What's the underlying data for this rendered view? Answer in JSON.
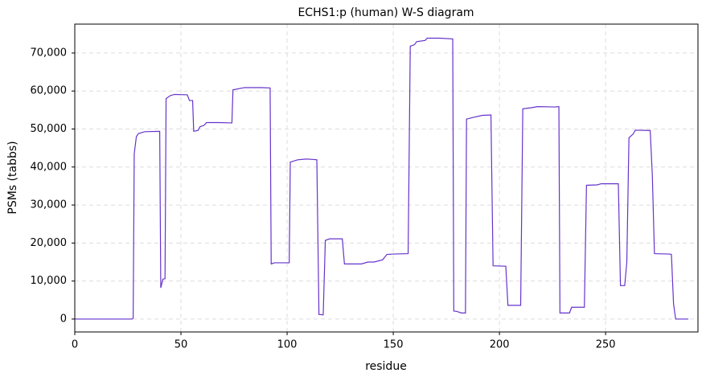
{
  "chart_data": {
    "type": "line",
    "title": "ECHS1:p (human) W-S diagram",
    "x_label": "residue",
    "y_label": "PSMs (tabbs)",
    "x": [
      0,
      27,
      27.5,
      28,
      29,
      30,
      33,
      40,
      40.5,
      41.5,
      42.5,
      43,
      45,
      47,
      53,
      54,
      55.5,
      56,
      58,
      59,
      61,
      62,
      68,
      74,
      74.5,
      80,
      88,
      92,
      92.5,
      94,
      101,
      101.5,
      105,
      109,
      112,
      114,
      115,
      117,
      118,
      120,
      126,
      127,
      135,
      138,
      141,
      145,
      147,
      150,
      157,
      158,
      160,
      161,
      165,
      166,
      172,
      178,
      178.5,
      180,
      182,
      184,
      184.5,
      188,
      192,
      196,
      197,
      203,
      204,
      210,
      211,
      215,
      218,
      226,
      228,
      228.5,
      233,
      234,
      240,
      241,
      246,
      248,
      256,
      257,
      259,
      260,
      261,
      263,
      264,
      271,
      272,
      273,
      280,
      281,
      282,
      283,
      289
    ],
    "series": [
      {
        "name": "PSMs",
        "color": "#6633cc",
        "values": [
          0,
          0,
          300,
          43500,
          48000,
          48800,
          49300,
          49400,
          8200,
          10500,
          10600,
          58000,
          58800,
          59100,
          59000,
          57500,
          57500,
          49400,
          49600,
          50600,
          51000,
          51700,
          51700,
          51600,
          60300,
          60900,
          60900,
          60800,
          14500,
          14800,
          14800,
          41300,
          41900,
          42100,
          42000,
          41900,
          1200,
          1100,
          20700,
          21100,
          21100,
          14500,
          14500,
          15000,
          15000,
          15600,
          17000,
          17100,
          17200,
          71800,
          72200,
          73000,
          73300,
          73900,
          73900,
          73700,
          2100,
          2000,
          1600,
          1600,
          52600,
          53100,
          53600,
          53700,
          14000,
          13900,
          3600,
          3600,
          55300,
          55600,
          55900,
          55800,
          55900,
          1600,
          1600,
          3100,
          3100,
          35200,
          35300,
          35600,
          35600,
          8800,
          8800,
          15000,
          47700,
          48700,
          49700,
          49600,
          38000,
          17200,
          17100,
          17000,
          4000,
          0,
          0
        ]
      }
    ],
    "xlim": [
      0,
      293.5
    ],
    "xticks": [
      0,
      50,
      100,
      150,
      200,
      250
    ],
    "ylim": [
      -3400,
      77600
    ],
    "yticks": [
      0,
      {
        "value": 10000,
        "label": "10,000"
      },
      {
        "value": 20000,
        "label": "20,000"
      },
      {
        "value": 30000,
        "label": "30,000"
      },
      {
        "value": 40000,
        "label": "40,000"
      },
      {
        "value": 50000,
        "label": "50,000"
      },
      {
        "value": 60000,
        "label": "60,000"
      },
      {
        "value": 70000,
        "label": "70,000"
      }
    ],
    "grid": true
  }
}
